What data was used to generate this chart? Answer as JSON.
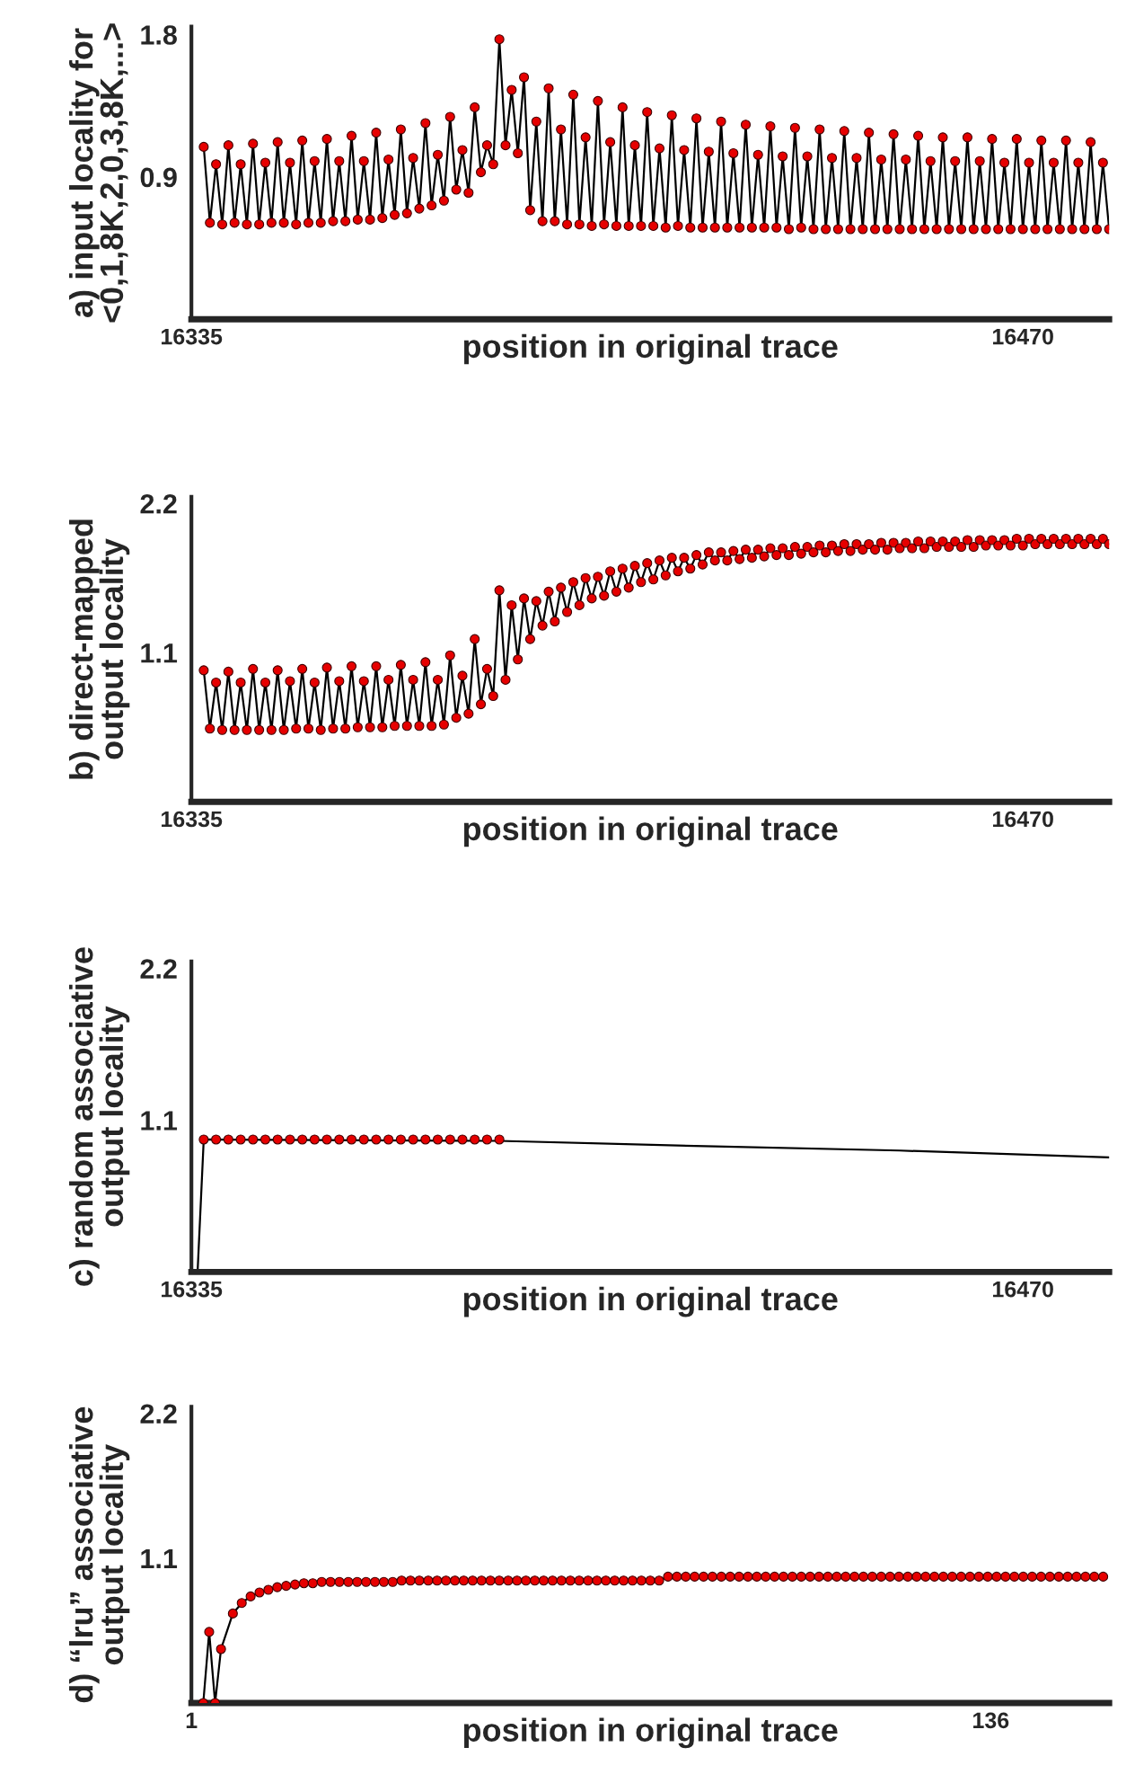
{
  "chart_data": [
    {
      "type": "line",
      "ylabel": "a) input locality for\n<0,1,8K,2,0,3,8K,...>",
      "xlabel": "position in original trace",
      "xlim": [
        16335,
        16484
      ],
      "xticks": [
        16335,
        16470
      ],
      "ylim": [
        0,
        1.85
      ],
      "yticks": [
        0.9,
        1.8
      ],
      "grid": false,
      "marker": "circle",
      "series": [
        {
          "color": "#e60000",
          "x": [
            16337,
            16338,
            16339,
            16340,
            16341,
            16342,
            16343,
            16344,
            16345,
            16346,
            16347,
            16348,
            16349,
            16350,
            16351,
            16352,
            16353,
            16354,
            16355,
            16356,
            16357,
            16358,
            16359,
            16360,
            16361,
            16362,
            16363,
            16364,
            16365,
            16366,
            16367,
            16368,
            16369,
            16370,
            16371,
            16372,
            16373,
            16374,
            16375,
            16376,
            16377,
            16378,
            16379,
            16380,
            16381,
            16382,
            16383,
            16384,
            16385,
            16386,
            16387,
            16388,
            16389,
            16390,
            16391,
            16392,
            16393,
            16394,
            16395,
            16396,
            16397,
            16398,
            16399,
            16400,
            16401,
            16402,
            16403,
            16404,
            16405,
            16406,
            16407,
            16408,
            16409,
            16410,
            16411,
            16412,
            16413,
            16414,
            16415,
            16416,
            16417,
            16418,
            16419,
            16420,
            16421,
            16422,
            16423,
            16424,
            16425,
            16426,
            16427,
            16428,
            16429,
            16430,
            16431,
            16432,
            16433,
            16434,
            16435,
            16436,
            16437,
            16438,
            16439,
            16440,
            16441,
            16442,
            16443,
            16444,
            16445,
            16446,
            16447,
            16448,
            16449,
            16450,
            16451,
            16452,
            16453,
            16454,
            16455,
            16456,
            16457,
            16458,
            16459,
            16460,
            16461,
            16462,
            16463,
            16464,
            16465,
            16466,
            16467,
            16468,
            16469,
            16470,
            16471,
            16472,
            16473,
            16474,
            16475,
            16476,
            16477,
            16478,
            16479,
            16480,
            16481,
            16482,
            16483,
            16484
          ],
          "values": [
            1.09,
            0.61,
            0.98,
            0.6,
            1.1,
            0.61,
            0.98,
            0.6,
            1.11,
            0.6,
            0.99,
            0.61,
            1.12,
            0.61,
            0.99,
            0.6,
            1.13,
            0.61,
            1.0,
            0.61,
            1.14,
            0.62,
            1.0,
            0.62,
            1.16,
            0.63,
            1.0,
            0.63,
            1.18,
            0.64,
            1.01,
            0.66,
            1.2,
            0.67,
            1.02,
            0.7,
            1.24,
            0.72,
            1.04,
            0.75,
            1.28,
            0.82,
            1.07,
            0.8,
            1.34,
            0.93,
            1.1,
            0.98,
            1.77,
            1.1,
            1.45,
            1.05,
            1.53,
            0.69,
            1.25,
            0.62,
            1.46,
            0.62,
            1.2,
            0.6,
            1.42,
            0.6,
            1.15,
            0.59,
            1.38,
            0.6,
            1.12,
            0.59,
            1.34,
            0.59,
            1.1,
            0.59,
            1.31,
            0.59,
            1.08,
            0.58,
            1.29,
            0.59,
            1.07,
            0.58,
            1.27,
            0.58,
            1.06,
            0.58,
            1.25,
            0.58,
            1.05,
            0.58,
            1.23,
            0.58,
            1.04,
            0.58,
            1.22,
            0.58,
            1.03,
            0.57,
            1.21,
            0.58,
            1.03,
            0.57,
            1.2,
            0.57,
            1.02,
            0.57,
            1.19,
            0.57,
            1.02,
            0.57,
            1.18,
            0.57,
            1.01,
            0.57,
            1.17,
            0.57,
            1.01,
            0.57,
            1.16,
            0.57,
            1.0,
            0.57,
            1.15,
            0.57,
            1.0,
            0.57,
            1.15,
            0.57,
            1.0,
            0.57,
            1.14,
            0.57,
            0.99,
            0.57,
            1.14,
            0.57,
            0.99,
            0.57,
            1.13,
            0.57,
            0.99,
            0.57,
            1.13,
            0.57,
            0.99,
            0.57,
            1.12,
            0.57,
            0.99,
            0.57
          ]
        }
      ]
    },
    {
      "type": "line",
      "ylabel": "b) direct-mapped\noutput locality",
      "xlabel": "position in original trace",
      "xlim": [
        16335,
        16484
      ],
      "xticks": [
        16335,
        16470
      ],
      "ylim": [
        0,
        2.25
      ],
      "yticks": [
        1.1,
        2.2
      ],
      "grid": false,
      "marker": "circle",
      "series": [
        {
          "color": "#e60000",
          "x": [
            16337,
            16338,
            16339,
            16340,
            16341,
            16342,
            16343,
            16344,
            16345,
            16346,
            16347,
            16348,
            16349,
            16350,
            16351,
            16352,
            16353,
            16354,
            16355,
            16356,
            16357,
            16358,
            16359,
            16360,
            16361,
            16362,
            16363,
            16364,
            16365,
            16366,
            16367,
            16368,
            16369,
            16370,
            16371,
            16372,
            16373,
            16374,
            16375,
            16376,
            16377,
            16378,
            16379,
            16380,
            16381,
            16382,
            16383,
            16384,
            16385,
            16386,
            16387,
            16388,
            16389,
            16390,
            16391,
            16392,
            16393,
            16394,
            16395,
            16396,
            16397,
            16398,
            16399,
            16400,
            16401,
            16402,
            16403,
            16404,
            16405,
            16406,
            16407,
            16408,
            16409,
            16410,
            16411,
            16412,
            16413,
            16414,
            16415,
            16416,
            16417,
            16418,
            16419,
            16420,
            16421,
            16422,
            16423,
            16424,
            16425,
            16426,
            16427,
            16428,
            16429,
            16430,
            16431,
            16432,
            16433,
            16434,
            16435,
            16436,
            16437,
            16438,
            16439,
            16440,
            16441,
            16442,
            16443,
            16444,
            16445,
            16446,
            16447,
            16448,
            16449,
            16450,
            16451,
            16452,
            16453,
            16454,
            16455,
            16456,
            16457,
            16458,
            16459,
            16460,
            16461,
            16462,
            16463,
            16464,
            16465,
            16466,
            16467,
            16468,
            16469,
            16470,
            16471,
            16472,
            16473,
            16474,
            16475,
            16476,
            16477,
            16478,
            16479,
            16480,
            16481,
            16482,
            16483,
            16484
          ],
          "values": [
            0.97,
            0.54,
            0.88,
            0.53,
            0.96,
            0.53,
            0.88,
            0.53,
            0.98,
            0.53,
            0.88,
            0.53,
            0.97,
            0.53,
            0.89,
            0.54,
            0.98,
            0.54,
            0.88,
            0.53,
            0.99,
            0.54,
            0.89,
            0.54,
            1.0,
            0.55,
            0.89,
            0.55,
            1.0,
            0.55,
            0.9,
            0.56,
            1.01,
            0.56,
            0.9,
            0.56,
            1.03,
            0.56,
            0.9,
            0.57,
            1.08,
            0.62,
            0.93,
            0.65,
            1.2,
            0.72,
            0.98,
            0.78,
            1.56,
            0.9,
            1.45,
            1.05,
            1.5,
            1.2,
            1.48,
            1.3,
            1.55,
            1.33,
            1.58,
            1.4,
            1.62,
            1.45,
            1.65,
            1.5,
            1.66,
            1.52,
            1.7,
            1.55,
            1.72,
            1.58,
            1.74,
            1.62,
            1.76,
            1.64,
            1.78,
            1.67,
            1.8,
            1.7,
            1.8,
            1.72,
            1.82,
            1.75,
            1.84,
            1.78,
            1.84,
            1.78,
            1.85,
            1.79,
            1.86,
            1.8,
            1.86,
            1.81,
            1.87,
            1.82,
            1.87,
            1.82,
            1.88,
            1.83,
            1.88,
            1.84,
            1.89,
            1.84,
            1.89,
            1.85,
            1.9,
            1.85,
            1.9,
            1.86,
            1.9,
            1.86,
            1.91,
            1.86,
            1.91,
            1.87,
            1.91,
            1.87,
            1.92,
            1.87,
            1.92,
            1.88,
            1.92,
            1.88,
            1.92,
            1.88,
            1.93,
            1.88,
            1.93,
            1.89,
            1.93,
            1.89,
            1.93,
            1.89,
            1.94,
            1.89,
            1.94,
            1.9,
            1.94,
            1.9,
            1.94,
            1.9,
            1.94,
            1.9,
            1.94,
            1.9,
            1.94,
            1.9,
            1.94,
            1.9
          ]
        }
      ]
    },
    {
      "type": "line",
      "ylabel": "c) random associative\noutput locality",
      "xlabel": "position in original trace",
      "xlim": [
        16335,
        16484
      ],
      "xticks": [
        16335,
        16470
      ],
      "ylim": [
        0,
        2.25
      ],
      "yticks": [
        1.1,
        2.2
      ],
      "grid": false,
      "marker": "circle",
      "series": [
        {
          "color": "#000000",
          "marker": "none",
          "x": [
            16335,
            16336,
            16337,
            16385,
            16420,
            16450,
            16484
          ],
          "values": [
            0.0,
            0.0,
            0.96,
            0.95,
            0.91,
            0.88,
            0.83
          ]
        },
        {
          "type": "scatter",
          "color": "#e60000",
          "x": [
            16337,
            16339,
            16341,
            16343,
            16345,
            16347,
            16349,
            16351,
            16353,
            16355,
            16357,
            16359,
            16361,
            16363,
            16365,
            16367,
            16369,
            16371,
            16373,
            16375,
            16377,
            16379,
            16381,
            16383,
            16385
          ],
          "values": [
            0.96,
            0.96,
            0.96,
            0.96,
            0.96,
            0.96,
            0.96,
            0.96,
            0.96,
            0.96,
            0.96,
            0.96,
            0.96,
            0.96,
            0.96,
            0.96,
            0.96,
            0.96,
            0.96,
            0.96,
            0.96,
            0.96,
            0.96,
            0.96,
            0.96
          ]
        }
      ]
    },
    {
      "type": "line",
      "ylabel": "d) “lru” associative\noutput locality",
      "xlabel": "position in original trace",
      "xlim": [
        1,
        156
      ],
      "xticks": [
        1,
        136
      ],
      "ylim": [
        0,
        2.25
      ],
      "yticks": [
        1.1,
        2.2
      ],
      "grid": false,
      "marker": "circle",
      "series": [
        {
          "color": "#e60000",
          "x": [
            3,
            4,
            5,
            6,
            8,
            9.5,
            11,
            12.5,
            14,
            15.5,
            17,
            18.5,
            20,
            21.5,
            23,
            24.5,
            26,
            27.5,
            29,
            30.5,
            32,
            33.5,
            35,
            36.5,
            38,
            39.5,
            41,
            42.5,
            44,
            45.5,
            47,
            48.5,
            50,
            51.5,
            53,
            54.5,
            56,
            57.5,
            59,
            60.5,
            62,
            63.5,
            65,
            66.5,
            68,
            69.5,
            71,
            72.5,
            74,
            75.5,
            77,
            78.5,
            80,
            81.5,
            83,
            84.5,
            86,
            87.5,
            89,
            90.5,
            92,
            93.5,
            95,
            96.5,
            98,
            99.5,
            101,
            102.5,
            104,
            105.5,
            107,
            108.5,
            110,
            111.5,
            113,
            114.5,
            116,
            117.5,
            119,
            120.5,
            122,
            123.5,
            125,
            126.5,
            128,
            129.5,
            131,
            132.5,
            134,
            135.5,
            137,
            138.5,
            140,
            141.5,
            143,
            144.5,
            146,
            147.5,
            149,
            150.5,
            152,
            153.5,
            155
          ],
          "values": [
            0.0,
            0.54,
            0.0,
            0.41,
            0.68,
            0.76,
            0.81,
            0.84,
            0.86,
            0.88,
            0.89,
            0.9,
            0.91,
            0.91,
            0.92,
            0.92,
            0.92,
            0.92,
            0.92,
            0.92,
            0.92,
            0.92,
            0.92,
            0.93,
            0.93,
            0.93,
            0.93,
            0.93,
            0.93,
            0.93,
            0.93,
            0.93,
            0.93,
            0.93,
            0.93,
            0.93,
            0.93,
            0.93,
            0.93,
            0.93,
            0.93,
            0.93,
            0.93,
            0.93,
            0.93,
            0.93,
            0.93,
            0.93,
            0.93,
            0.93,
            0.93,
            0.93,
            0.93,
            0.96,
            0.96,
            0.96,
            0.96,
            0.96,
            0.96,
            0.96,
            0.96,
            0.96,
            0.96,
            0.96,
            0.96,
            0.96,
            0.96,
            0.96,
            0.96,
            0.96,
            0.96,
            0.96,
            0.96,
            0.96,
            0.96,
            0.96,
            0.96,
            0.96,
            0.96,
            0.96,
            0.96,
            0.96,
            0.96,
            0.96,
            0.96,
            0.96,
            0.96,
            0.96,
            0.96,
            0.96,
            0.96,
            0.96,
            0.96,
            0.96,
            0.96,
            0.96,
            0.96,
            0.96,
            0.96,
            0.96,
            0.96,
            0.96,
            0.96
          ]
        }
      ]
    }
  ]
}
